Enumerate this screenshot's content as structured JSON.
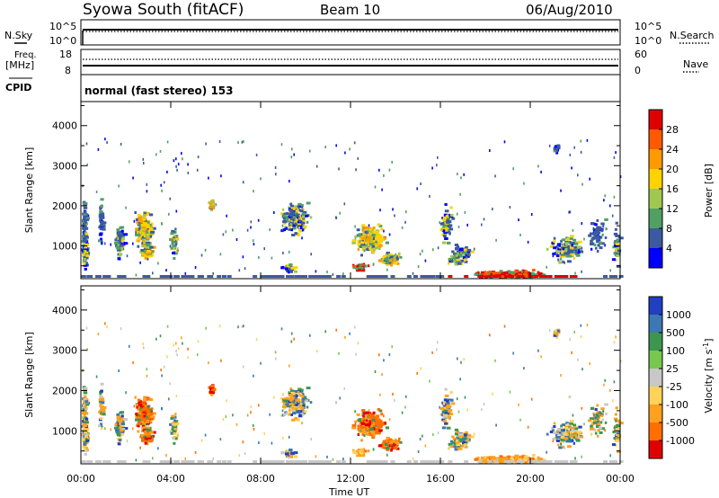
{
  "header": {
    "title": "Syowa South (fitACF)",
    "beam": "Beam 10",
    "date": "06/Aug/2010"
  },
  "status_panels": {
    "nsky_label": "N.Sky",
    "nsearch_label": "N.Search",
    "freq_label": "Freq.",
    "freq_unit": "[MHz]",
    "nave_label": "Nave",
    "cpid_label": "CPID",
    "left_ticks_1": [
      "10^5",
      "10^0"
    ],
    "right_ticks_1": [
      "10^5",
      "10^0"
    ],
    "left_ticks_2": [
      "18",
      "8"
    ],
    "right_ticks_2": [
      "60",
      "0"
    ],
    "cpid_text": "normal (fast stereo) 153"
  },
  "chart_data": [
    {
      "type": "heatmap",
      "name_hint": "power",
      "x_ticks": [
        "00:00",
        "04:00",
        "08:00",
        "12:00",
        "16:00",
        "20:00",
        "00:00"
      ],
      "xlabel": "Time UT",
      "ylabel": "Slant Range [km]",
      "ylim": [
        180,
        4600
      ],
      "yticks": [
        1000,
        2000,
        3000,
        4000
      ],
      "colorbar": {
        "label": "Power [dB]",
        "ticks": [
          "28",
          "24",
          "20",
          "16",
          "12",
          "8",
          "4"
        ],
        "colors": [
          "#e00000",
          "#ff5a00",
          "#ff9a00",
          "#ffd200",
          "#a0c850",
          "#50a064",
          "#3c5aa0",
          "#0000ff"
        ]
      }
    },
    {
      "type": "heatmap",
      "name_hint": "velocity",
      "x_ticks": [
        "00:00",
        "04:00",
        "08:00",
        "12:00",
        "16:00",
        "20:00",
        "00:00"
      ],
      "xlabel": "Time UT",
      "ylabel": "Slant Range [km]",
      "ylim": [
        180,
        4600
      ],
      "yticks": [
        1000,
        2000,
        3000,
        4000
      ],
      "colorbar": {
        "label": "Velocity [m s",
        "label_sup": "-1",
        "label_end": "]",
        "ticks": [
          "1000",
          "500",
          "100",
          "25",
          "-25",
          "-100",
          "-500",
          "-1000"
        ],
        "colors": [
          "#2040c0",
          "#3c78b4",
          "#3c9650",
          "#78c850",
          "#c8c8c8",
          "#ffd25a",
          "#ffa01e",
          "#ff6e00",
          "#e00000"
        ]
      }
    }
  ],
  "scatter_blobs": [
    {
      "t": 0.1,
      "r": 1500,
      "dt": 0.12,
      "dr": 900,
      "n": 60,
      "pal": "low"
    },
    {
      "t": 0.15,
      "r": 900,
      "dt": 0.15,
      "dr": 600,
      "n": 80,
      "pal": "mix"
    },
    {
      "t": 0.85,
      "r": 1700,
      "dt": 0.12,
      "dr": 700,
      "n": 50,
      "pal": "low"
    },
    {
      "t": 1.7,
      "r": 1150,
      "dt": 0.3,
      "dr": 500,
      "n": 90,
      "pal": "mix"
    },
    {
      "t": 2.75,
      "r": 1450,
      "dt": 0.5,
      "dr": 600,
      "n": 160,
      "pal": "hot"
    },
    {
      "t": 2.9,
      "r": 900,
      "dt": 0.35,
      "dr": 300,
      "n": 70,
      "pal": "hot"
    },
    {
      "t": 4.1,
      "r": 1100,
      "dt": 0.25,
      "dr": 500,
      "n": 40,
      "pal": "mix"
    },
    {
      "t": 5.75,
      "r": 2050,
      "dt": 0.12,
      "dr": 180,
      "n": 40,
      "pal": "hot"
    },
    {
      "t": 9.5,
      "r": 1700,
      "dt": 0.8,
      "dr": 500,
      "n": 170,
      "pal": "mix"
    },
    {
      "t": 9.2,
      "r": 450,
      "dt": 0.4,
      "dr": 150,
      "n": 35,
      "pal": "mix"
    },
    {
      "t": 12.8,
      "r": 1200,
      "dt": 0.9,
      "dr": 450,
      "n": 200,
      "pal": "hot"
    },
    {
      "t": 13.7,
      "r": 700,
      "dt": 0.6,
      "dr": 200,
      "n": 80,
      "pal": "hot"
    },
    {
      "t": 12.4,
      "r": 500,
      "dt": 0.4,
      "dr": 120,
      "n": 40,
      "pal": "warm"
    },
    {
      "t": 16.2,
      "r": 1600,
      "dt": 0.4,
      "dr": 600,
      "n": 80,
      "pal": "mix"
    },
    {
      "t": 16.8,
      "r": 800,
      "dt": 0.7,
      "dr": 300,
      "n": 90,
      "pal": "mix"
    },
    {
      "t": 19.0,
      "r": 320,
      "dt": 1.9,
      "dr": 120,
      "n": 220,
      "pal": "warm"
    },
    {
      "t": 21.5,
      "r": 950,
      "dt": 0.9,
      "dr": 400,
      "n": 110,
      "pal": "mix"
    },
    {
      "t": 22.9,
      "r": 1350,
      "dt": 0.5,
      "dr": 500,
      "n": 60,
      "pal": "low"
    },
    {
      "t": 21.1,
      "r": 3450,
      "dt": 0.15,
      "dr": 150,
      "n": 20,
      "pal": "low"
    },
    {
      "t": 23.8,
      "r": 1000,
      "dt": 0.25,
      "dr": 800,
      "n": 40,
      "pal": "mix"
    }
  ]
}
